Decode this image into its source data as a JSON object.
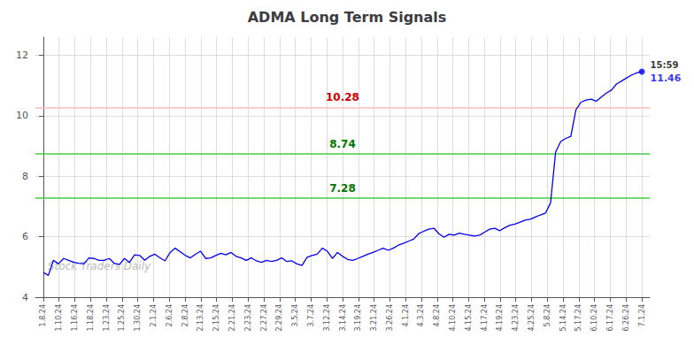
{
  "chart_data": {
    "type": "line",
    "title": "ADMA Long Term Signals",
    "color": "#0000ee",
    "x": [
      0,
      0.322,
      0.6441,
      0.9661,
      1.2881,
      1.6102,
      1.9322,
      2.2542,
      2.5763,
      2.8983,
      3.2203,
      3.5424,
      3.8644,
      4.1864,
      4.5085,
      4.8305,
      5.1525,
      5.4746,
      5.7966,
      6.1186,
      6.4407,
      6.7627,
      7.0847,
      7.4068,
      7.7288,
      8.0508,
      8.3729,
      8.6949,
      9.0169,
      9.339,
      9.661,
      9.9831,
      10.3051,
      10.6271,
      10.9492,
      11.2712,
      11.5932,
      11.9153,
      12.2373,
      12.5593,
      12.8814,
      13.2034,
      13.5254,
      13.8475,
      14.1695,
      14.4915,
      14.8136,
      15.1356,
      15.4576,
      15.7797,
      16.1017,
      16.4237,
      16.7458,
      17.0678,
      17.3898,
      17.7119,
      18.0339,
      18.3559,
      18.678,
      19,
      19.322,
      19.6441,
      19.9661,
      20.2881,
      20.6102,
      20.9322,
      21.2542,
      21.5763,
      21.8983,
      22.2203,
      22.5424,
      22.8644,
      23.1864,
      23.5085,
      23.8305,
      24.1525,
      24.4746,
      24.7966,
      25.1186,
      25.4407,
      25.7627,
      26.0847,
      26.4068,
      26.7288,
      27.0508,
      27.3729,
      27.6949,
      28.0169,
      28.339,
      28.661,
      28.9831,
      29.3051,
      29.6271,
      29.9492,
      30.2712,
      30.5932,
      30.9153,
      31.2373,
      31.5593,
      31.8814,
      32.2034,
      32.5254,
      32.8475,
      33.1695,
      33.4915,
      33.8136,
      34.1356,
      34.4576,
      34.7797,
      35.1017,
      35.4237,
      35.7458,
      36.0678,
      36.3898,
      36.7119,
      37.0339,
      37.3559,
      37.678,
      38
    ],
    "values": [
      4.82,
      4.72,
      5.22,
      5.1,
      5.28,
      5.22,
      5.15,
      5.12,
      5.1,
      5.3,
      5.28,
      5.22,
      5.22,
      5.28,
      5.12,
      5.08,
      5.28,
      5.15,
      5.4,
      5.38,
      5.22,
      5.35,
      5.42,
      5.3,
      5.2,
      5.48,
      5.62,
      5.5,
      5.38,
      5.3,
      5.42,
      5.52,
      5.28,
      5.3,
      5.38,
      5.45,
      5.4,
      5.48,
      5.35,
      5.3,
      5.22,
      5.3,
      5.2,
      5.15,
      5.22,
      5.18,
      5.22,
      5.3,
      5.18,
      5.2,
      5.1,
      5.05,
      5.32,
      5.38,
      5.42,
      5.62,
      5.52,
      5.28,
      5.48,
      5.35,
      5.25,
      5.22,
      5.28,
      5.35,
      5.42,
      5.48,
      5.55,
      5.62,
      5.55,
      5.62,
      5.72,
      5.78,
      5.85,
      5.92,
      6.1,
      6.18,
      6.25,
      6.28,
      6.1,
      5.98,
      6.08,
      6.05,
      6.12,
      6.08,
      6.05,
      6.02,
      6.05,
      6.15,
      6.25,
      6.28,
      6.2,
      6.3,
      6.38,
      6.42,
      6.48,
      6.55,
      6.58,
      6.65,
      6.72,
      6.78,
      7.12,
      8.8,
      9.15,
      9.25,
      9.32,
      10.2,
      10.45,
      10.52,
      10.55,
      10.48,
      10.62,
      10.75,
      10.85,
      11.05,
      11.15,
      11.25,
      11.35,
      11.42,
      11.46
    ],
    "xlim": [
      -0.5,
      38.5
    ],
    "xticks": [
      {
        "value": 0,
        "label": "1.8.24"
      },
      {
        "value": 1,
        "label": "1.10.24"
      },
      {
        "value": 2,
        "label": "1.16.24"
      },
      {
        "value": 3,
        "label": "1.18.24"
      },
      {
        "value": 4,
        "label": "1.23.24"
      },
      {
        "value": 5,
        "label": "1.25.24"
      },
      {
        "value": 6,
        "label": "1.30.24"
      },
      {
        "value": 7,
        "label": "2.1.24"
      },
      {
        "value": 8,
        "label": "2.6.24"
      },
      {
        "value": 9,
        "label": "2.8.24"
      },
      {
        "value": 10,
        "label": "2.13.24"
      },
      {
        "value": 11,
        "label": "2.15.24"
      },
      {
        "value": 12,
        "label": "2.21.24"
      },
      {
        "value": 13,
        "label": "2.23.24"
      },
      {
        "value": 14,
        "label": "2.27.24"
      },
      {
        "value": 15,
        "label": "2.29.24"
      },
      {
        "value": 16,
        "label": "3.5.24"
      },
      {
        "value": 17,
        "label": "3.7.24"
      },
      {
        "value": 18,
        "label": "3.12.24"
      },
      {
        "value": 19,
        "label": "3.14.24"
      },
      {
        "value": 20,
        "label": "3.19.24"
      },
      {
        "value": 21,
        "label": "3.21.24"
      },
      {
        "value": 22,
        "label": "3.26.24"
      },
      {
        "value": 23,
        "label": "4.1.24"
      },
      {
        "value": 24,
        "label": "4.3.24"
      },
      {
        "value": 25,
        "label": "4.8.24"
      },
      {
        "value": 26,
        "label": "4.10.24"
      },
      {
        "value": 27,
        "label": "4.15.24"
      },
      {
        "value": 28,
        "label": "4.17.24"
      },
      {
        "value": 29,
        "label": "4.19.24"
      },
      {
        "value": 30,
        "label": "4.23.24"
      },
      {
        "value": 31,
        "label": "4.25.24"
      },
      {
        "value": 32,
        "label": "5.8.24"
      },
      {
        "value": 33,
        "label": "5.14.24"
      },
      {
        "value": 34,
        "label": "5.17.24"
      },
      {
        "value": 35,
        "label": "6.10.24"
      },
      {
        "value": 36,
        "label": "6.17.24"
      },
      {
        "value": 37,
        "label": "6.26.24"
      },
      {
        "value": 38,
        "label": "7.1.24"
      }
    ],
    "ylim": [
      4,
      12.6
    ],
    "yticks": [
      4,
      6,
      8,
      10,
      12
    ],
    "grid": true,
    "hlines": [
      {
        "y": 10.28,
        "color": "#ffbbbb",
        "label": "10.28",
        "label_color": "#cc0000"
      },
      {
        "y": 8.74,
        "color": "#44cc44",
        "label": "8.74",
        "label_color": "#007700"
      },
      {
        "y": 7.28,
        "color": "#44cc44",
        "label": "7.28",
        "label_color": "#007700"
      }
    ],
    "annotations": [
      {
        "text": "15:59",
        "x": 38,
        "y": 11.46,
        "color": "#000000"
      },
      {
        "text": "11.46",
        "x": 38,
        "y": 11.46,
        "color": "#0000ee"
      }
    ],
    "watermark": "Stock Traders Daily"
  }
}
